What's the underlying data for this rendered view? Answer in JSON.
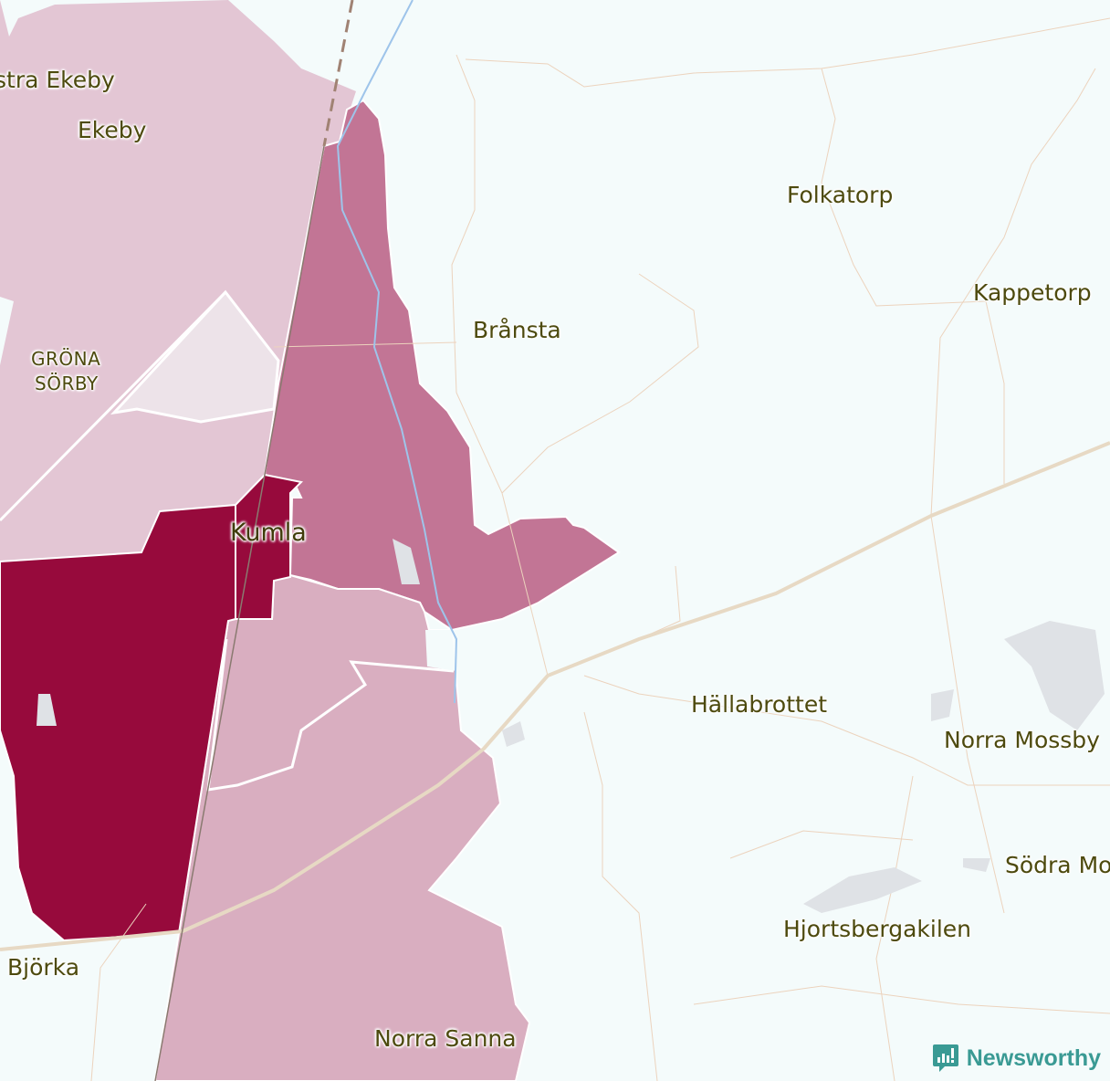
{
  "colors": {
    "background": "#f4fbfb",
    "level_lightest": "#ede3e9",
    "level_light": "#e3c6d4",
    "level_medium_light": "#d9aec0",
    "level_medium": "#c27595",
    "level_dark": "#970a3c",
    "road": "#e7d9c4",
    "river": "#9ec4ea",
    "railway": "#a08273",
    "brand": "#3a9a94"
  },
  "labels": {
    "ostra_ekeby": "stra Ekeby",
    "ekeby": "Ekeby",
    "grona": "GRÖNA",
    "sorby": "SÖRBY",
    "kumla": "Kumla",
    "bransta": "Brånsta",
    "folkatorp": "Folkatorp",
    "kappetorp": "Kappetorp",
    "hallabrottet": "Hällabrottet",
    "norra_mossby": "Norra Mossby",
    "sodra_mossby": "Södra Mo",
    "hjortsbergakilen": "Hjortsbergakilen",
    "bjorka": "Björka",
    "norra_sanna": "Norra Sanna"
  },
  "brand": {
    "name": "Newsworthy",
    "icon": "bar-chart-speech-icon"
  }
}
